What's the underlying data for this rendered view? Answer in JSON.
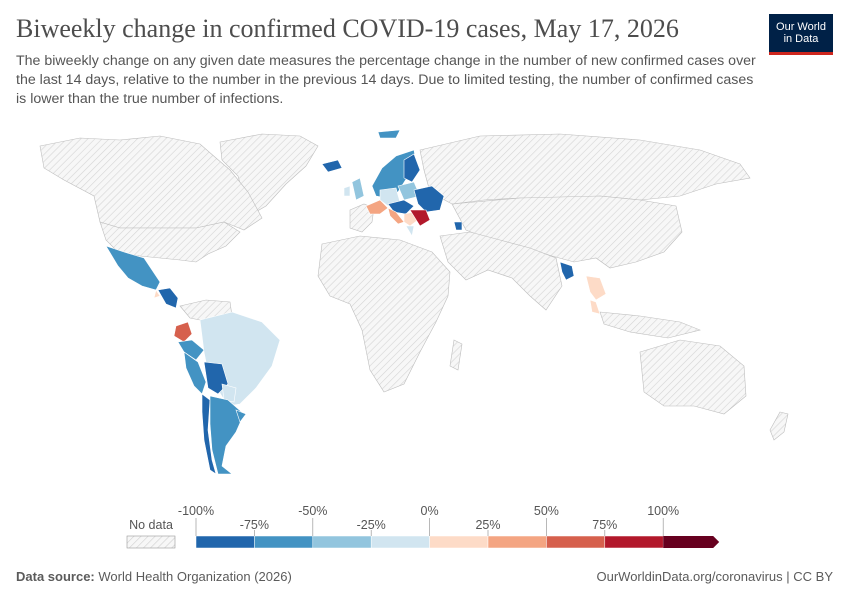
{
  "header": {
    "title": "Biweekly change in confirmed COVID-19 cases, May 17, 2026",
    "subtitle": "The biweekly change on any given date measures the percentage change in the number of new confirmed cases over the last 14 days, relative to the number in the previous 14 days. Due to limited testing, the number of confirmed cases is lower than the true number of infections."
  },
  "logo": {
    "line1": "Our World",
    "line2": "in Data"
  },
  "legend": {
    "no_data_label": "No data",
    "bins": [
      {
        "label": "-100%",
        "color": "#2166ac"
      },
      {
        "label": "-75%",
        "color": "#4393c3"
      },
      {
        "label": "-50%",
        "color": "#92c5de"
      },
      {
        "label": "-25%",
        "color": "#d1e5f0"
      },
      {
        "label": "0%",
        "color": "#fddbc7"
      },
      {
        "label": "25%",
        "color": "#f4a582"
      },
      {
        "label": "50%",
        "color": "#d6604d"
      },
      {
        "label": "75%",
        "color": "#b2182b"
      },
      {
        "label": "100%",
        "color": "#67001f"
      }
    ]
  },
  "footer": {
    "source_label": "Data source:",
    "source_text": "World Health Organization (2026)",
    "link_text": "OurWorldinData.org/coronavirus | CC BY"
  }
}
